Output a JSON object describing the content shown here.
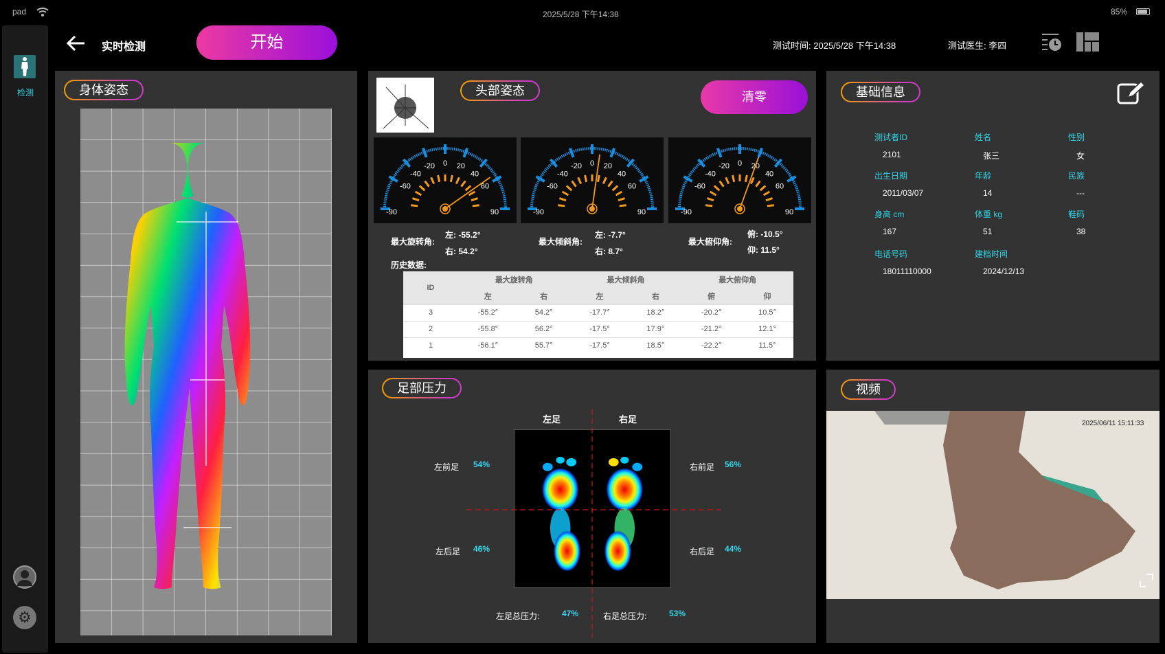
{
  "status_bar": {
    "device": "pad",
    "datetime": "2025/5/28  下午14:38",
    "battery": "85%"
  },
  "sidebar": {
    "items": [
      {
        "label": "检测",
        "icon": "body-icon",
        "active": true
      }
    ],
    "bottom_icons": [
      "user-icon",
      "gear-icon"
    ]
  },
  "header": {
    "title": "实时检测",
    "start_label": "开始",
    "test_time_label": "测试时间:",
    "test_time": "2025/5/28  下午14:38",
    "doctor_label": "测试医生:",
    "doctor": "李四"
  },
  "body_panel": {
    "title": "身体姿态"
  },
  "head_panel": {
    "title": "头部姿态",
    "reset_label": "清零",
    "gauge_ticks": [
      "-90",
      "-60",
      "-40",
      "-20",
      "0",
      "20",
      "40",
      "60",
      "90"
    ],
    "gauges": [
      {
        "needle": 55,
        "label": "最大旋转角:",
        "a_label": "左:",
        "a": "-55.2°",
        "b_label": "右:",
        "b": "54.2°"
      },
      {
        "needle": 8,
        "label": "最大倾斜角:",
        "a_label": "左:",
        "a": "-7.7°",
        "b_label": "右:",
        "b": "8.7°"
      },
      {
        "needle": 20,
        "label": "最大俯仰角:",
        "a_label": "俯:",
        "a": "-10.5°",
        "b_label": "仰:",
        "b": "11.5°"
      }
    ],
    "history_label": "历史数据:",
    "table": {
      "id_header": "ID",
      "groups": [
        "最大旋转角",
        "最大倾斜角",
        "最大俯仰角"
      ],
      "sub": [
        "左",
        "右",
        "左",
        "右",
        "俯",
        "仰"
      ],
      "rows": [
        [
          "3",
          "-55.2°",
          "54.2°",
          "-17.7°",
          "18.2°",
          "-20.2°",
          "10.5°"
        ],
        [
          "2",
          "-55.8°",
          "56.2°",
          "-17.5°",
          "17.9°",
          "-21.2°",
          "12.1°"
        ],
        [
          "1",
          "-56.1°",
          "55.7°",
          "-17.5°",
          "18.5°",
          "-22.2°",
          "11.5°"
        ]
      ]
    }
  },
  "info_panel": {
    "title": "基础信息",
    "fields": [
      {
        "k": "测试者ID",
        "v": "2101"
      },
      {
        "k": "姓名",
        "v": "张三"
      },
      {
        "k": "性别",
        "v": "女"
      },
      {
        "k": "出生日期",
        "v": "2011/03/07"
      },
      {
        "k": "年龄",
        "v": "14"
      },
      {
        "k": "民族",
        "v": "---"
      },
      {
        "k": "身高 cm",
        "v": "167"
      },
      {
        "k": "体重 kg",
        "v": "51"
      },
      {
        "k": "鞋码",
        "v": "38"
      },
      {
        "k": "电话号码",
        "v": "18011110000"
      },
      {
        "k": "建档时间",
        "v": "2024/12/13"
      }
    ]
  },
  "foot_panel": {
    "title": "足部压力",
    "left": "左足",
    "right": "右足",
    "left_fore_label": "左前足",
    "left_fore": "54%",
    "left_rear_label": "左后足",
    "left_rear": "46%",
    "right_fore_label": "右前足",
    "right_fore": "56%",
    "right_rear_label": "右后足",
    "right_rear": "44%",
    "left_total_label": "左足总压力:",
    "left_total": "47%",
    "right_total_label": "右足总压力:",
    "right_total": "53%"
  },
  "video_panel": {
    "title": "视频",
    "timestamp": "2025/06/11 15:11:33"
  }
}
